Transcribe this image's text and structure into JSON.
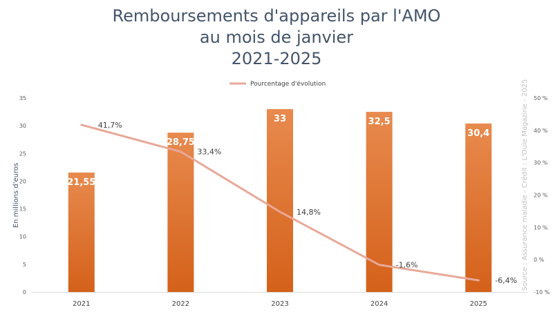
{
  "chart_data": {
    "type": "bar+line",
    "title": [
      "Remboursements d'appareils par l'AMO",
      "au mois de janvier",
      "2021-2025"
    ],
    "categories": [
      "2021",
      "2022",
      "2023",
      "2024",
      "2025"
    ],
    "bars": {
      "name": "Remboursements",
      "values": [
        21.55,
        28.75,
        33,
        32.5,
        30.4
      ],
      "labels": [
        "21,55",
        "28,75",
        "33",
        "32,5",
        "30,4"
      ],
      "color": "#e0731f"
    },
    "line": {
      "name": "Pourcentage d'évolution",
      "values": [
        41.7,
        33.4,
        14.8,
        -1.6,
        -6.4
      ],
      "labels": [
        "41,7%",
        "33,4%",
        "14,8%",
        "-1,6%",
        "-6,4%"
      ],
      "color": "#e8a898"
    },
    "ylabel": "En millions d'euros",
    "ylim": [
      0,
      35
    ],
    "yticks": [
      "0",
      "5",
      "10",
      "15",
      "20",
      "25",
      "30",
      "35"
    ],
    "y2lim": [
      -10,
      50
    ],
    "y2ticks": [
      "-10 %",
      "0 %",
      "10 %",
      "20 %",
      "30 %",
      "40 %",
      "50 %"
    ],
    "legend_position": "top-center",
    "source": "Source : Assurance maladie - Crédit : L'Ouïe Magazine - 2025"
  }
}
